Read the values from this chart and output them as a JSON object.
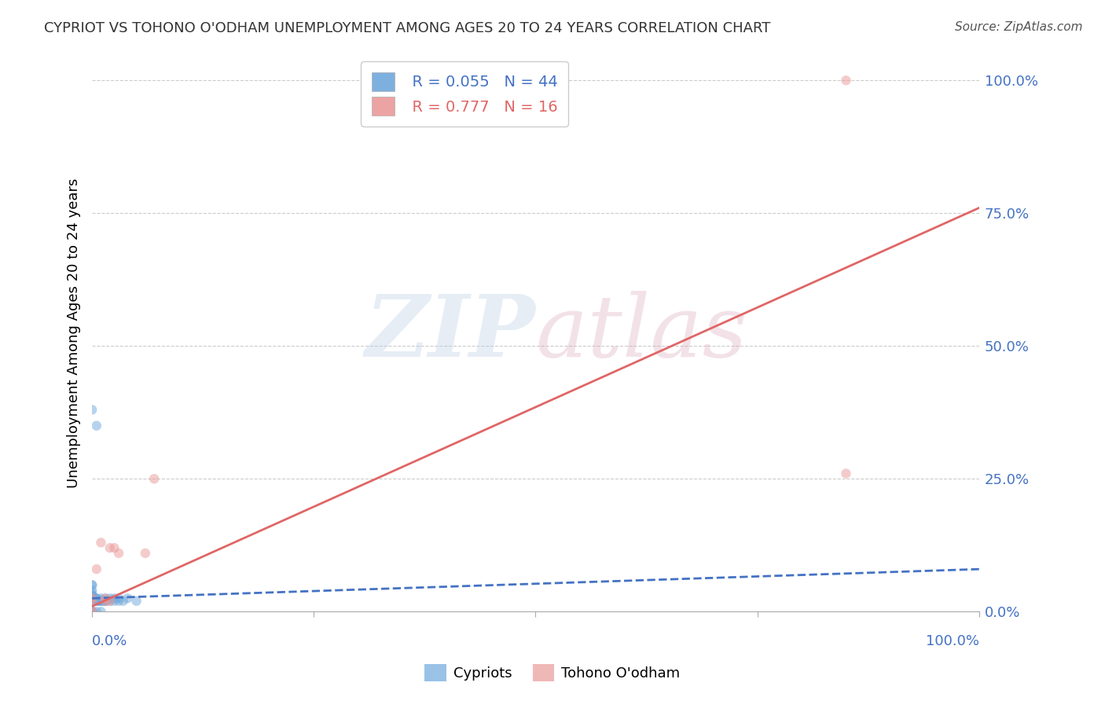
{
  "title": "CYPRIOT VS TOHONO O'ODHAM UNEMPLOYMENT AMONG AGES 20 TO 24 YEARS CORRELATION CHART",
  "source": "Source: ZipAtlas.com",
  "ylabel": "Unemployment Among Ages 20 to 24 years",
  "ytick_labels": [
    "100.0%",
    "75.0%",
    "50.0%",
    "25.0%",
    "0.0%"
  ],
  "ytick_values": [
    1.0,
    0.75,
    0.5,
    0.25,
    0.0
  ],
  "xlim": [
    0.0,
    1.0
  ],
  "ylim": [
    0.0,
    1.05
  ],
  "legend1_label": "Cypriots",
  "legend2_label": "Tohono O'odham",
  "R1": 0.055,
  "N1": 44,
  "R2": 0.777,
  "N2": 16,
  "blue_color": "#6fa8dc",
  "pink_color": "#ea9999",
  "blue_line_color": "#4472c4",
  "pink_line_color": "#e06666",
  "title_color": "#333333",
  "axis_label_color": "#4472c4",
  "blue_dots_x": [
    0.0,
    0.0,
    0.0,
    0.0,
    0.0,
    0.0,
    0.0,
    0.0,
    0.0,
    0.0,
    0.0,
    0.0,
    0.0,
    0.0,
    0.0,
    0.0,
    0.0,
    0.0,
    0.005,
    0.005,
    0.005,
    0.005,
    0.005,
    0.005,
    0.008,
    0.008,
    0.01,
    0.01,
    0.01,
    0.01,
    0.012,
    0.015,
    0.015,
    0.015,
    0.015,
    0.02,
    0.02,
    0.025,
    0.025,
    0.03,
    0.03,
    0.035,
    0.04,
    0.05
  ],
  "blue_dots_y": [
    0.0,
    0.0,
    0.0,
    0.0,
    0.0,
    0.0,
    0.0,
    0.0,
    0.02,
    0.02,
    0.03,
    0.03,
    0.03,
    0.035,
    0.04,
    0.05,
    0.05,
    0.38,
    0.0,
    0.02,
    0.02,
    0.025,
    0.025,
    0.35,
    0.02,
    0.02,
    0.0,
    0.02,
    0.02,
    0.025,
    0.02,
    0.02,
    0.02,
    0.02,
    0.025,
    0.02,
    0.025,
    0.02,
    0.025,
    0.02,
    0.025,
    0.02,
    0.025,
    0.02
  ],
  "pink_dots_x": [
    0.0,
    0.0,
    0.0,
    0.0,
    0.005,
    0.01,
    0.015,
    0.015,
    0.02,
    0.02,
    0.025,
    0.03,
    0.06,
    0.07,
    0.85,
    0.85
  ],
  "pink_dots_y": [
    0.0,
    0.0,
    0.02,
    0.025,
    0.08,
    0.13,
    0.02,
    0.025,
    0.02,
    0.12,
    0.12,
    0.11,
    0.11,
    0.25,
    0.26,
    1.0
  ],
  "blue_trendline_x": [
    0.0,
    1.0
  ],
  "blue_trendline_y": [
    0.025,
    0.08
  ],
  "pink_trendline_x": [
    0.0,
    1.0
  ],
  "pink_trendline_y": [
    0.01,
    0.76
  ],
  "dot_size": 80,
  "dot_alpha": 0.5
}
